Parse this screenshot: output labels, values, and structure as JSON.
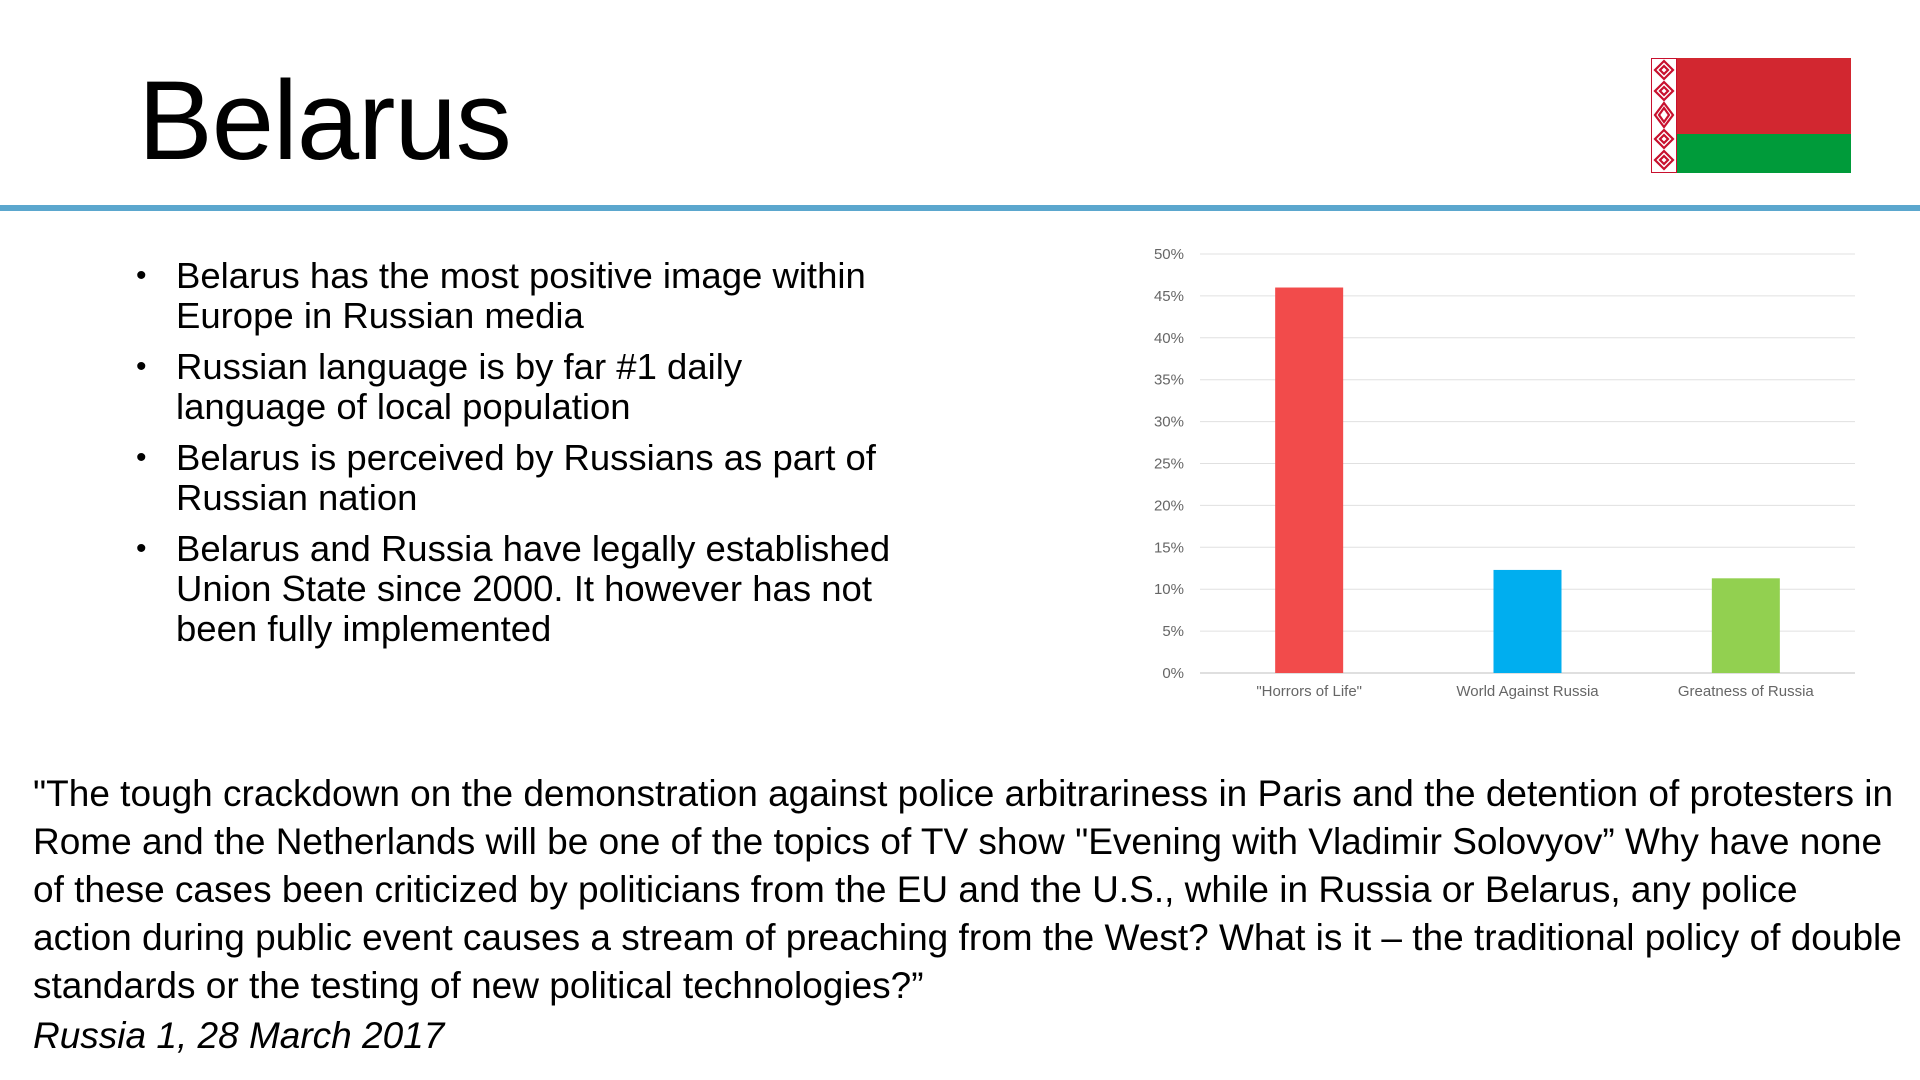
{
  "slide": {
    "title": "Belarus",
    "bullets": [
      "Belarus has the most positive image within Europe in Russian media",
      "Russian language is by far #1 daily language of local population",
      "Belarus is perceived by Russians as part of Russian nation",
      "Belarus and Russia have legally established Union State since 2000. It however has not been fully implemented"
    ],
    "quote": "\"The tough crackdown on the demonstration against police arbitrariness in Paris and the detention of protesters in Rome and the Netherlands will be one of the topics of TV show \"Evening with Vladimir Solovyov” Why have none of these cases been criticized by politicians from the EU and the U.S., while in Russia or Belarus, any police action during public event causes a stream of preaching from the West? What is it – the traditional policy of double standards or the testing of new political technologies?”",
    "attribution": "Russia 1, 28 March 2017"
  },
  "flag": {
    "icon": "belarus-flag-icon",
    "colors": {
      "red": "#d22730",
      "green": "#009b3a",
      "ornament_bg": "#ffffff",
      "ornament": "#c8102e"
    }
  },
  "colors": {
    "rule": "#5ba7ce",
    "grid": "#e0e0e0",
    "axis_text": "#666666"
  },
  "chart_data": {
    "type": "bar",
    "categories": [
      "\"Horrors of Life\"",
      "World Against Russia",
      "Greatness of Russia"
    ],
    "values": [
      46,
      12.3,
      11.3
    ],
    "bar_colors": [
      "#f24b4b",
      "#00aeef",
      "#92d050"
    ],
    "ylim": [
      0,
      50
    ],
    "y_ticks": [
      0,
      5,
      10,
      15,
      20,
      25,
      30,
      35,
      40,
      45,
      50
    ],
    "y_tick_labels": [
      "0%",
      "5%",
      "10%",
      "15%",
      "20%",
      "25%",
      "30%",
      "35%",
      "40%",
      "45%",
      "50%"
    ],
    "grid": true,
    "legend": "none",
    "title": "",
    "xlabel": "",
    "ylabel": ""
  }
}
